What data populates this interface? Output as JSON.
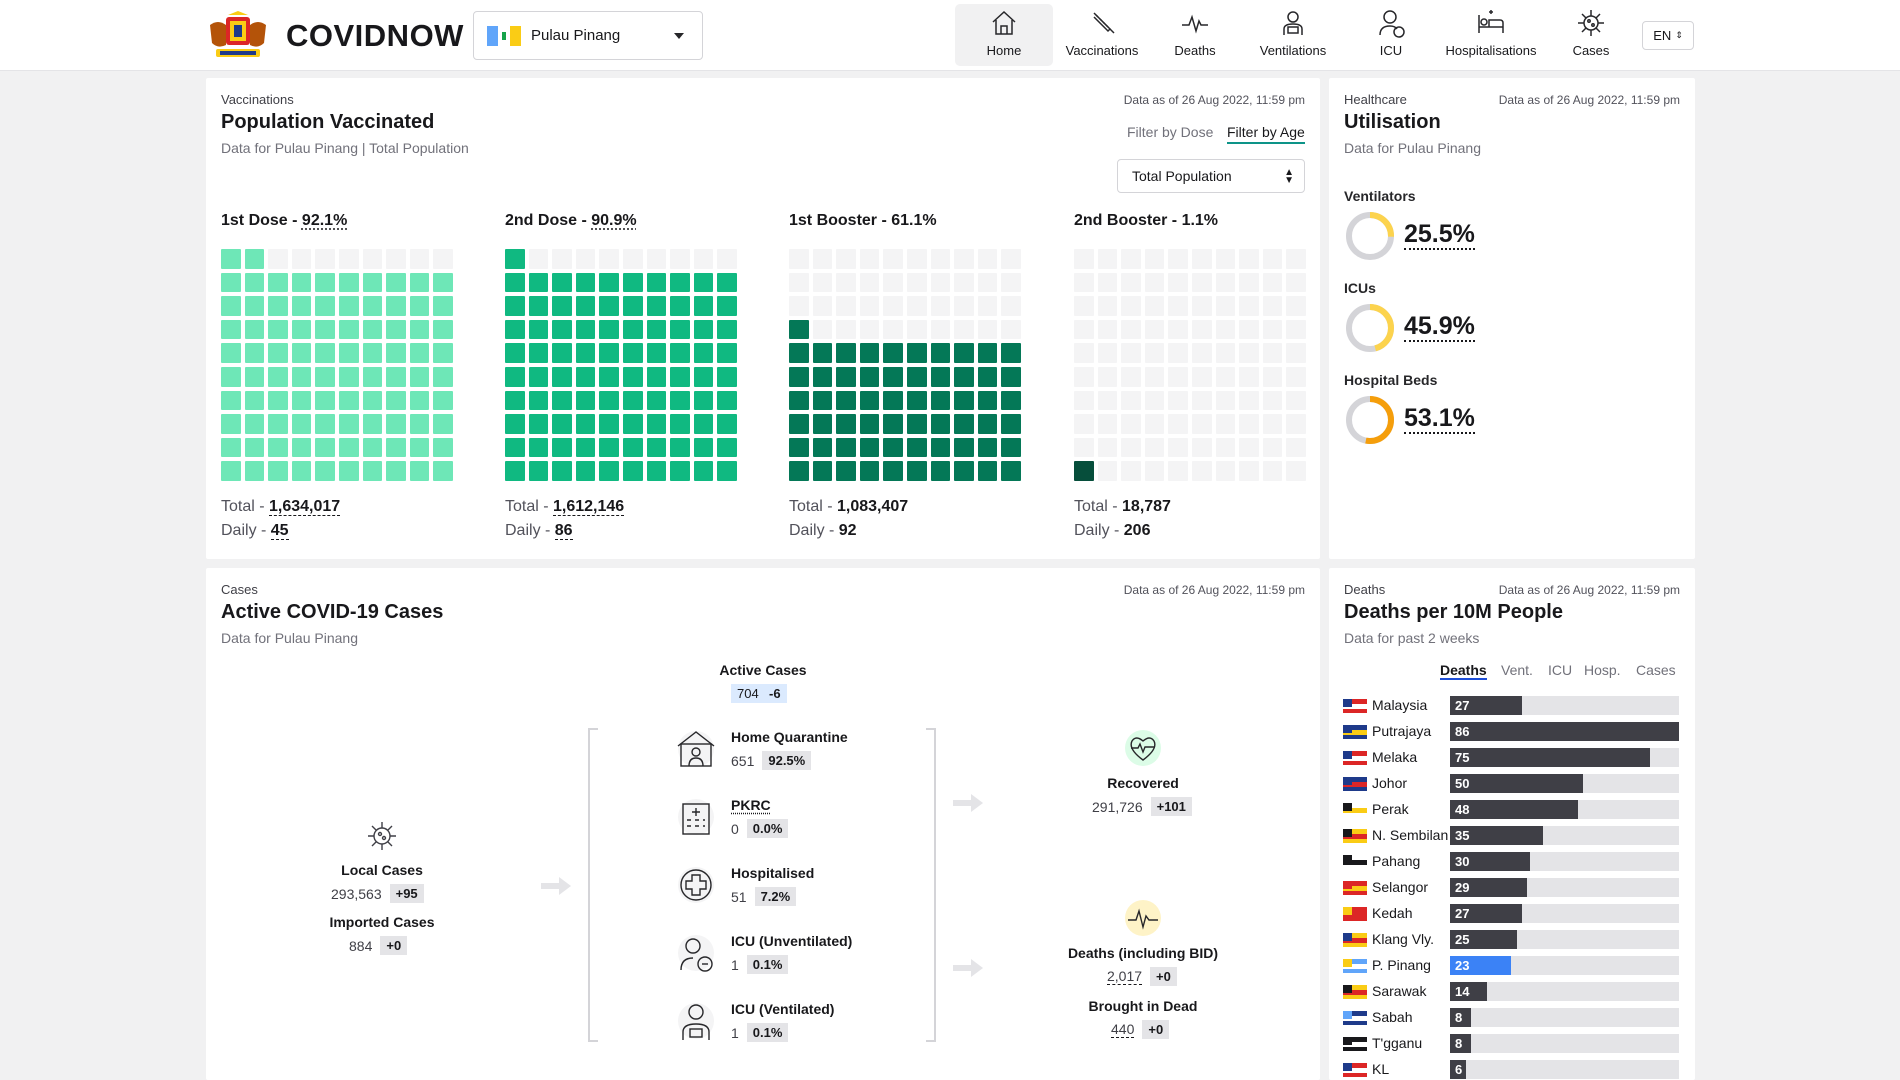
{
  "header": {
    "brand": "COVIDNOW",
    "state_selector": {
      "value": "Pulau Pinang"
    },
    "nav": [
      {
        "label": "Home",
        "icon": "home-icon",
        "active": true
      },
      {
        "label": "Vaccinations",
        "icon": "syringe-icon"
      },
      {
        "label": "Deaths",
        "icon": "pulse-icon"
      },
      {
        "label": "Ventilations",
        "icon": "ventilator-icon"
      },
      {
        "label": "ICU",
        "icon": "icu-icon"
      },
      {
        "label": "Hospitalisations",
        "icon": "hospital-bed-icon"
      },
      {
        "label": "Cases",
        "icon": "virus-icon"
      }
    ],
    "language": "EN"
  },
  "vaccination": {
    "eyebrow": "Vaccinations",
    "title": "Population Vaccinated",
    "subtitle": "Data for Pulau Pinang | Total Population",
    "as_of": "Data as of 26 Aug 2022, 11:59 pm",
    "filters": [
      "Filter by Dose",
      "Filter by Age"
    ],
    "active_filter": "Filter by Age",
    "population_select": "Total Population",
    "doses": [
      {
        "label": "1st Dose - ",
        "pct": "92.1%",
        "total_label": "Total - ",
        "total": "1,634,017",
        "daily_label": "Daily - ",
        "daily": "45",
        "fill": 92.1,
        "color": "#6ee7b7"
      },
      {
        "label": "2nd Dose - ",
        "pct": "90.9%",
        "total_label": "Total - ",
        "total": "1,612,146",
        "daily_label": "Daily - ",
        "daily": "86",
        "fill": 90.9,
        "color": "#10b981"
      },
      {
        "label": "1st Booster - ",
        "pct": "61.1%",
        "total_label": "Total - ",
        "total": "1,083,407",
        "daily_label": "Daily - ",
        "daily": "92",
        "fill": 61.1,
        "color": "#047857"
      },
      {
        "label": "2nd Booster - ",
        "pct": "1.1%",
        "total_label": "Total - ",
        "total": "18,787",
        "daily_label": "Daily - ",
        "daily": "206",
        "fill": 1.1,
        "color": "#064e3b"
      }
    ]
  },
  "healthcare": {
    "eyebrow": "Healthcare",
    "title": "Utilisation",
    "subtitle": "Data for Pulau Pinang",
    "as_of": "Data as of 26 Aug 2022, 11:59 pm",
    "items": [
      {
        "label": "Ventilators",
        "value": "25.5%",
        "fraction": 0.255
      },
      {
        "label": "ICUs",
        "value": "45.9%",
        "fraction": 0.459
      },
      {
        "label": "Hospital Beds",
        "value": "53.1%",
        "fraction": 0.531
      }
    ]
  },
  "cases": {
    "eyebrow": "Cases",
    "title": "Active COVID-19 Cases",
    "subtitle": "Data for Pulau Pinang",
    "as_of": "Data as of 26 Aug 2022, 11:59 pm",
    "active": {
      "label": "Active Cases",
      "value": "704",
      "delta": "-6"
    },
    "local": {
      "label": "Local Cases",
      "value": "293,563",
      "delta": "+95"
    },
    "imported": {
      "label": "Imported Cases",
      "value": "884",
      "delta": "+0"
    },
    "states": [
      {
        "label": "Home Quarantine",
        "value": "651",
        "pct": "92.5%"
      },
      {
        "label": "PKRC",
        "value": "0",
        "pct": "0.0%"
      },
      {
        "label": "Hospitalised",
        "value": "51",
        "pct": "7.2%"
      },
      {
        "label": "ICU (Unventilated)",
        "value": "1",
        "pct": "0.1%"
      },
      {
        "label": "ICU (Ventilated)",
        "value": "1",
        "pct": "0.1%"
      }
    ],
    "recovered": {
      "label": "Recovered",
      "value": "291,726",
      "delta": "+101"
    },
    "deaths": {
      "label": "Deaths (including BID)",
      "value": "2,017",
      "delta": "+0"
    },
    "bid": {
      "label": "Brought in Dead",
      "value": "440",
      "delta": "+0"
    }
  },
  "deaths_panel": {
    "eyebrow": "Deaths",
    "title": "Deaths per 10M People",
    "subtitle": "Data for past 2 weeks",
    "as_of": "Data as of 26 Aug 2022, 11:59 pm",
    "tabs": [
      "Deaths",
      "Vent.",
      "ICU",
      "Hosp.",
      "Cases"
    ],
    "active_tab": "Deaths",
    "rows": [
      {
        "state": "Malaysia",
        "value": 27
      },
      {
        "state": "Putrajaya",
        "value": 86
      },
      {
        "state": "Melaka",
        "value": 75
      },
      {
        "state": "Johor",
        "value": 50
      },
      {
        "state": "Perak",
        "value": 48
      },
      {
        "state": "N. Sembilan",
        "value": 35
      },
      {
        "state": "Pahang",
        "value": 30
      },
      {
        "state": "Selangor",
        "value": 29
      },
      {
        "state": "Kedah",
        "value": 27
      },
      {
        "state": "Klang Vly.",
        "value": 25
      },
      {
        "state": "P. Pinang",
        "value": 23,
        "highlight": true
      },
      {
        "state": "Sarawak",
        "value": 14
      },
      {
        "state": "Sabah",
        "value": 8
      },
      {
        "state": "T'gganu",
        "value": 8
      },
      {
        "state": "KL",
        "value": 6
      }
    ],
    "max": 86
  }
}
